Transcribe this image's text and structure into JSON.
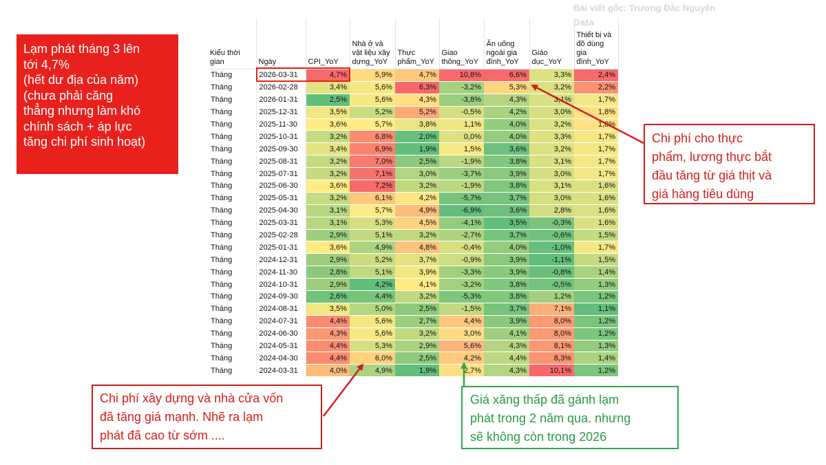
{
  "watermark": {
    "line1": "Bài viết gốc: Trương Đắc Nguyên",
    "line2": "Data"
  },
  "left_note": {
    "lines": [
      "Lạm phát tháng 3 lên",
      "tới 4,7%",
      "(hết dư địa của năm)",
      "(chưa phải căng",
      "thẳng nhưng làm khó",
      "chính sách + áp lực",
      "tăng chi phí sinh hoạt)"
    ]
  },
  "table": {
    "headers": [
      "Kiểu thời gian",
      "Ngày",
      "CPI_YoY",
      "Nhà ở và vật liệu xây dựng_YoY",
      "Thực phẩm_YoY",
      "Giao thông_YoY",
      "Ăn uống ngoài gia đình_YoY",
      "Giáo dục_YoY",
      "Thiết bị và đồ dùng gia đình_YoY"
    ],
    "rows": [
      [
        "Tháng",
        "2026-03-31",
        "4,7%",
        "5,9%",
        "4,7%",
        "10,8%",
        "6,6%",
        "3,3%",
        "2,4%"
      ],
      [
        "Tháng",
        "2026-02-28",
        "3,4%",
        "5,6%",
        "6,3%",
        "-3,2%",
        "5,3%",
        "3,2%",
        "2,2%"
      ],
      [
        "Tháng",
        "2026-01-31",
        "2,5%",
        "5,6%",
        "4,3%",
        "-3,8%",
        "4,3%",
        "3,1%",
        "1,7%"
      ],
      [
        "Tháng",
        "2025-12-31",
        "3,5%",
        "5,2%",
        "5,2%",
        "-0,5%",
        "4,2%",
        "3,0%",
        "1,8%"
      ],
      [
        "Tháng",
        "2025-11-30",
        "3,6%",
        "5,7%",
        "3,8%",
        "1,1%",
        "4,0%",
        "3,2%",
        "1,8%"
      ],
      [
        "Tháng",
        "2025-10-31",
        "3,2%",
        "6,8%",
        "2,0%",
        "0,0%",
        "4,0%",
        "3,3%",
        "1,7%"
      ],
      [
        "Tháng",
        "2025-09-30",
        "3,4%",
        "6,9%",
        "1,9%",
        "1,5%",
        "3,6%",
        "3,2%",
        "1,7%"
      ],
      [
        "Tháng",
        "2025-08-31",
        "3,2%",
        "7,0%",
        "2,5%",
        "-1,9%",
        "3,8%",
        "3,1%",
        "1,7%"
      ],
      [
        "Tháng",
        "2025-07-31",
        "3,2%",
        "7,1%",
        "3,0%",
        "-3,7%",
        "3,9%",
        "3,0%",
        "1,7%"
      ],
      [
        "Tháng",
        "2025-06-30",
        "3,6%",
        "7,2%",
        "3,2%",
        "-1,9%",
        "3,8%",
        "3,1%",
        "1,6%"
      ],
      [
        "Tháng",
        "2025-05-31",
        "3,2%",
        "6,1%",
        "4,2%",
        "-5,7%",
        "3,7%",
        "3,0%",
        "1,6%"
      ],
      [
        "Tháng",
        "2025-04-30",
        "3,1%",
        "5,7%",
        "4,9%",
        "-6,9%",
        "3,6%",
        "2,8%",
        "1,6%"
      ],
      [
        "Tháng",
        "2025-03-31",
        "3,1%",
        "5,3%",
        "4,5%",
        "-4,1%",
        "3,5%",
        "-0,3%",
        "1,6%"
      ],
      [
        "Tháng",
        "2025-02-28",
        "2,9%",
        "5,1%",
        "3,2%",
        "-2,7%",
        "3,7%",
        "-0,6%",
        "1,5%"
      ],
      [
        "Tháng",
        "2025-01-31",
        "3,6%",
        "4,9%",
        "4,8%",
        "-0,4%",
        "4,0%",
        "-1,0%",
        "1,7%"
      ],
      [
        "Tháng",
        "2024-12-31",
        "2,9%",
        "5,2%",
        "3,7%",
        "-0,9%",
        "3,9%",
        "-1,1%",
        "1,5%"
      ],
      [
        "Tháng",
        "2024-11-30",
        "2,8%",
        "5,1%",
        "3,9%",
        "-3,3%",
        "3,9%",
        "-0,8%",
        "1,4%"
      ],
      [
        "Tháng",
        "2024-10-31",
        "2,9%",
        "4,2%",
        "4,1%",
        "-3,2%",
        "3,8%",
        "-0,5%",
        "1,3%"
      ],
      [
        "Tháng",
        "2024-09-30",
        "2,6%",
        "4,4%",
        "3,2%",
        "-5,3%",
        "3,8%",
        "1,2%",
        "1,2%"
      ],
      [
        "Tháng",
        "2024-08-31",
        "3,5%",
        "5,0%",
        "2,5%",
        "-1,5%",
        "3,7%",
        "7,1%",
        "1,1%"
      ],
      [
        "Tháng",
        "2024-07-31",
        "4,4%",
        "5,6%",
        "2,7%",
        "4,4%",
        "3,9%",
        "8,0%",
        "1,2%"
      ],
      [
        "Tháng",
        "2024-06-30",
        "4,3%",
        "5,6%",
        "3,2%",
        "3,0%",
        "4,1%",
        "8,0%",
        "1,2%"
      ],
      [
        "Tháng",
        "2024-05-31",
        "4,4%",
        "5,3%",
        "2,9%",
        "5,6%",
        "4,3%",
        "8,1%",
        "1,3%"
      ],
      [
        "Tháng",
        "2024-04-30",
        "4,4%",
        "6,0%",
        "2,5%",
        "4,2%",
        "4,4%",
        "8,3%",
        "1,4%"
      ],
      [
        "Tháng",
        "2024-03-31",
        "4,0%",
        "4,9%",
        "1,9%",
        "2,7%",
        "4,3%",
        "10,1%",
        "1,2%"
      ]
    ]
  },
  "callouts": {
    "food": [
      "Chi phí cho thực",
      "phẩm, lương thực bắt",
      "đầu tăng từ giá thịt và",
      "giá hàng tiêu dùng"
    ],
    "build": [
      "Chi phí xây dựng và nhà cửa vốn",
      "đã tăng giá mạnh. Nhẽ ra lạm",
      "phát đã cao từ sớm ...."
    ],
    "gas": [
      "Giá xăng thấp đã gánh lạm",
      "phát trong 2 năm qua. nhưng",
      "sẽ không còn trong 2026"
    ]
  },
  "colors": {
    "red_box": "#e8211c",
    "red_text": "#d2201c",
    "green_text": "#2a9a45",
    "heat_high": "#f8696b",
    "heat_mid": "#ffeb84",
    "heat_low": "#63be7b"
  }
}
